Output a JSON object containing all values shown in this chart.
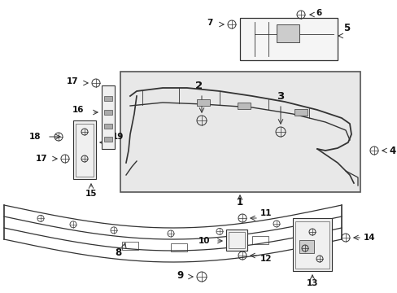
{
  "bg_color": "#ffffff",
  "fig_width": 4.89,
  "fig_height": 3.6,
  "dpi": 100,
  "lc": "#333333",
  "lc2": "#555555",
  "fs": 7.5,
  "fc": "#111111",
  "gray_fill": "#e8e8e8"
}
